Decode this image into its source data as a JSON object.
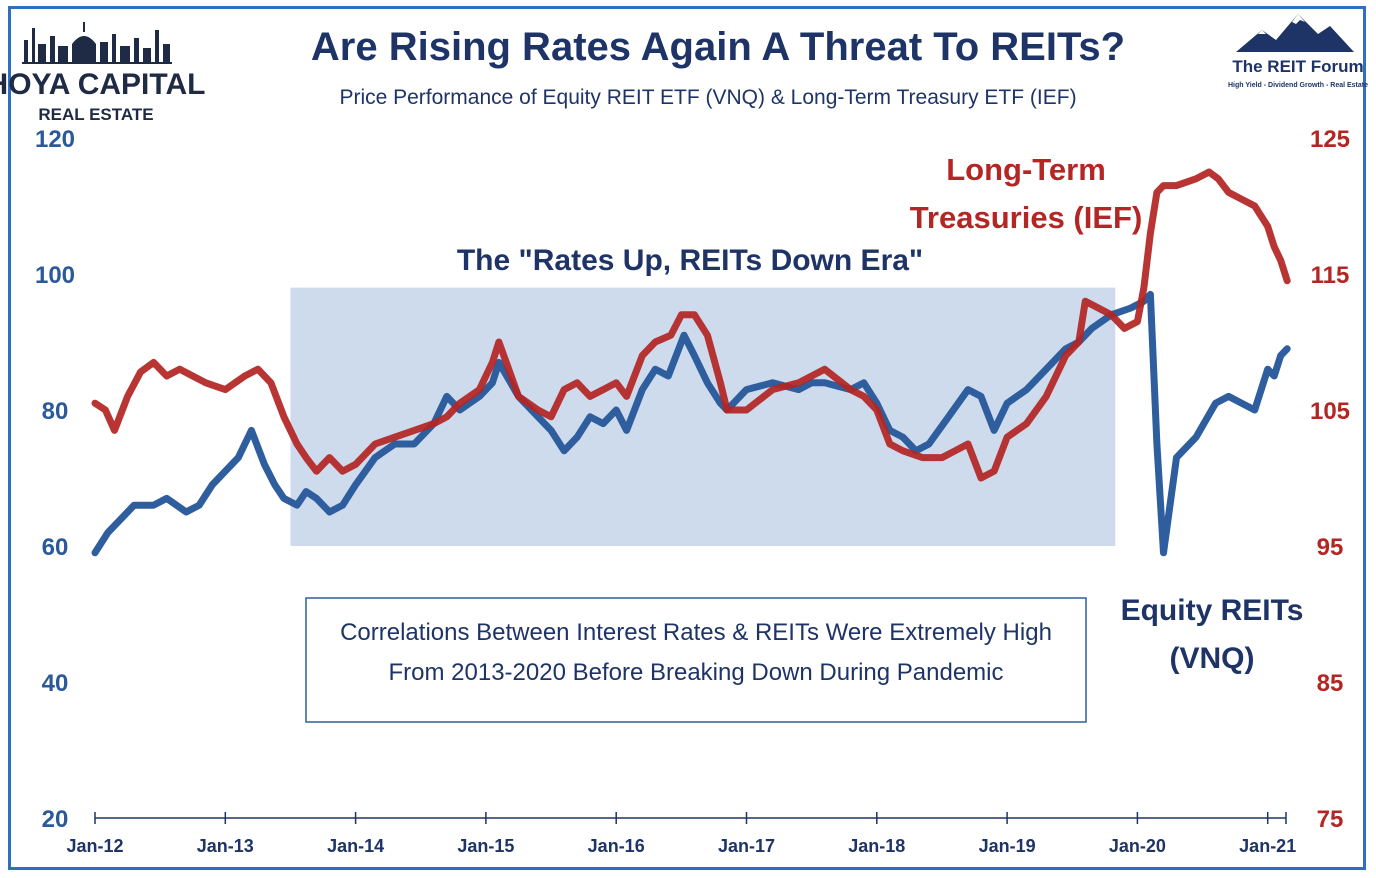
{
  "header": {
    "title": "Are Rising Rates Again A Threat To REITs?",
    "subtitle": "Price Performance of Equity REIT ETF (VNQ) & Long-Term Treasury ETF (IEF)"
  },
  "logos": {
    "left_line1": "HOYA CAPITAL",
    "left_line2": "REAL ESTATE",
    "right_name": "The REIT Forum",
    "right_tagline": "High Yield - Dividend Growth - Real Estate"
  },
  "annotations": {
    "era_label": "The \"Rates Up, REITs Down Era\"",
    "ief_label_line1": "Long-Term",
    "ief_label_line2": "Treasuries (IEF)",
    "vnq_label_line1": "Equity REITs",
    "vnq_label_line2": "(VNQ)",
    "note_line1": "Correlations Between Interest Rates & REITs Were Extremely High",
    "note_line2": "From 2013-2020 Before Breaking Down During Pandemic"
  },
  "colors": {
    "vnq": "#2e5e9e",
    "ief": "#b32624",
    "shade": "#c5d5ea",
    "frame": "#2f6fc0"
  },
  "chart_data": {
    "type": "line",
    "x_ticks": [
      "Jan-12",
      "Jan-13",
      "Jan-14",
      "Jan-15",
      "Jan-16",
      "Jan-17",
      "Jan-18",
      "Jan-19",
      "Jan-20",
      "Jan-21"
    ],
    "y_left": {
      "ticks": [
        20,
        40,
        60,
        80,
        100,
        120
      ],
      "ylim": [
        20,
        120
      ]
    },
    "y_right": {
      "ticks": [
        75,
        85,
        95,
        105,
        115,
        125
      ],
      "ylim": [
        75,
        125
      ]
    },
    "shaded_period": {
      "start": 2013.5,
      "end": 2019.83,
      "ymin": 60,
      "ymax": 98,
      "axis": "left"
    },
    "series": [
      {
        "axis": "left",
        "x": [
          2012.0,
          2012.1,
          2012.2,
          2012.3,
          2012.45,
          2012.55,
          2012.7,
          2012.8,
          2012.9,
          2013.0,
          2013.1,
          2013.2,
          2013.3,
          2013.38,
          2013.45,
          2013.55,
          2013.62,
          2013.7,
          2013.8,
          2013.9,
          2014.0,
          2014.15,
          2014.3,
          2014.45,
          2014.6,
          2014.7,
          2014.8,
          2014.95,
          2015.05,
          2015.1,
          2015.25,
          2015.4,
          2015.5,
          2015.6,
          2015.7,
          2015.8,
          2015.9,
          2016.0,
          2016.08,
          2016.2,
          2016.3,
          2016.4,
          2016.52,
          2016.6,
          2016.7,
          2016.8,
          2016.85,
          2017.0,
          2017.2,
          2017.4,
          2017.5,
          2017.6,
          2017.8,
          2017.9,
          2018.0,
          2018.1,
          2018.2,
          2018.3,
          2018.4,
          2018.55,
          2018.7,
          2018.8,
          2018.9,
          2019.0,
          2019.15,
          2019.3,
          2019.45,
          2019.55,
          2019.65,
          2019.8,
          2019.95,
          2020.05,
          2020.1,
          2020.15,
          2020.2,
          2020.3,
          2020.45,
          2020.6,
          2020.7,
          2020.8,
          2020.9,
          2021.0,
          2021.05,
          2021.1,
          2021.15
        ],
        "values": [
          59,
          62,
          64,
          66,
          66,
          67,
          65,
          66,
          69,
          71,
          73,
          77,
          72,
          69,
          67,
          66,
          68,
          67,
          65,
          66,
          69,
          73,
          75,
          75,
          78,
          82,
          80,
          82,
          84,
          87,
          82,
          79,
          77,
          74,
          76,
          79,
          78,
          80,
          77,
          83,
          86,
          85,
          91,
          88,
          84,
          81,
          80,
          83,
          84,
          83,
          84,
          84,
          83,
          84,
          81,
          77,
          76,
          74,
          75,
          79,
          83,
          82,
          77,
          81,
          83,
          86,
          89,
          90,
          92,
          94,
          95,
          96,
          97,
          75,
          59,
          73,
          76,
          81,
          82,
          81,
          80,
          86,
          85,
          88,
          89
        ]
      },
      {
        "axis": "right",
        "x": [
          2012.0,
          2012.08,
          2012.15,
          2012.25,
          2012.35,
          2012.45,
          2012.55,
          2012.65,
          2012.75,
          2012.85,
          2013.0,
          2013.15,
          2013.25,
          2013.35,
          2013.45,
          2013.55,
          2013.62,
          2013.7,
          2013.8,
          2013.9,
          2014.0,
          2014.15,
          2014.3,
          2014.45,
          2014.6,
          2014.7,
          2014.8,
          2014.95,
          2015.05,
          2015.1,
          2015.25,
          2015.4,
          2015.5,
          2015.6,
          2015.7,
          2015.8,
          2015.9,
          2016.0,
          2016.08,
          2016.2,
          2016.3,
          2016.42,
          2016.5,
          2016.6,
          2016.7,
          2016.8,
          2016.85,
          2017.0,
          2017.2,
          2017.4,
          2017.5,
          2017.6,
          2017.8,
          2017.9,
          2018.0,
          2018.1,
          2018.2,
          2018.35,
          2018.5,
          2018.6,
          2018.7,
          2018.8,
          2018.9,
          2019.0,
          2019.15,
          2019.3,
          2019.45,
          2019.55,
          2019.6,
          2019.7,
          2019.8,
          2019.9,
          2020.0,
          2020.05,
          2020.1,
          2020.15,
          2020.2,
          2020.3,
          2020.45,
          2020.55,
          2020.62,
          2020.7,
          2020.8,
          2020.9,
          2021.0,
          2021.05,
          2021.1,
          2021.15
        ],
        "values": [
          105.5,
          105,
          103.5,
          106,
          107.8,
          108.5,
          107.5,
          108,
          107.5,
          107,
          106.5,
          107.5,
          108,
          107,
          104.5,
          102.5,
          101.5,
          100.5,
          101.5,
          100.5,
          101,
          102.5,
          103,
          103.5,
          104,
          104.5,
          105.5,
          106.5,
          108.5,
          110,
          106,
          105,
          104.5,
          106.5,
          107,
          106,
          106.5,
          107,
          106,
          109,
          110,
          110.5,
          112,
          112,
          110.5,
          107,
          105,
          105,
          106.5,
          107,
          107.5,
          108,
          106.5,
          106,
          105,
          102.5,
          102,
          101.5,
          101.5,
          102,
          102.5,
          100,
          100.5,
          103,
          104,
          106,
          109,
          110,
          113,
          112.5,
          112,
          111,
          111.5,
          114,
          118,
          121,
          121.5,
          121.5,
          122,
          122.5,
          122,
          121,
          120.5,
          120,
          118.5,
          117,
          116,
          114.5
        ]
      }
    ]
  }
}
